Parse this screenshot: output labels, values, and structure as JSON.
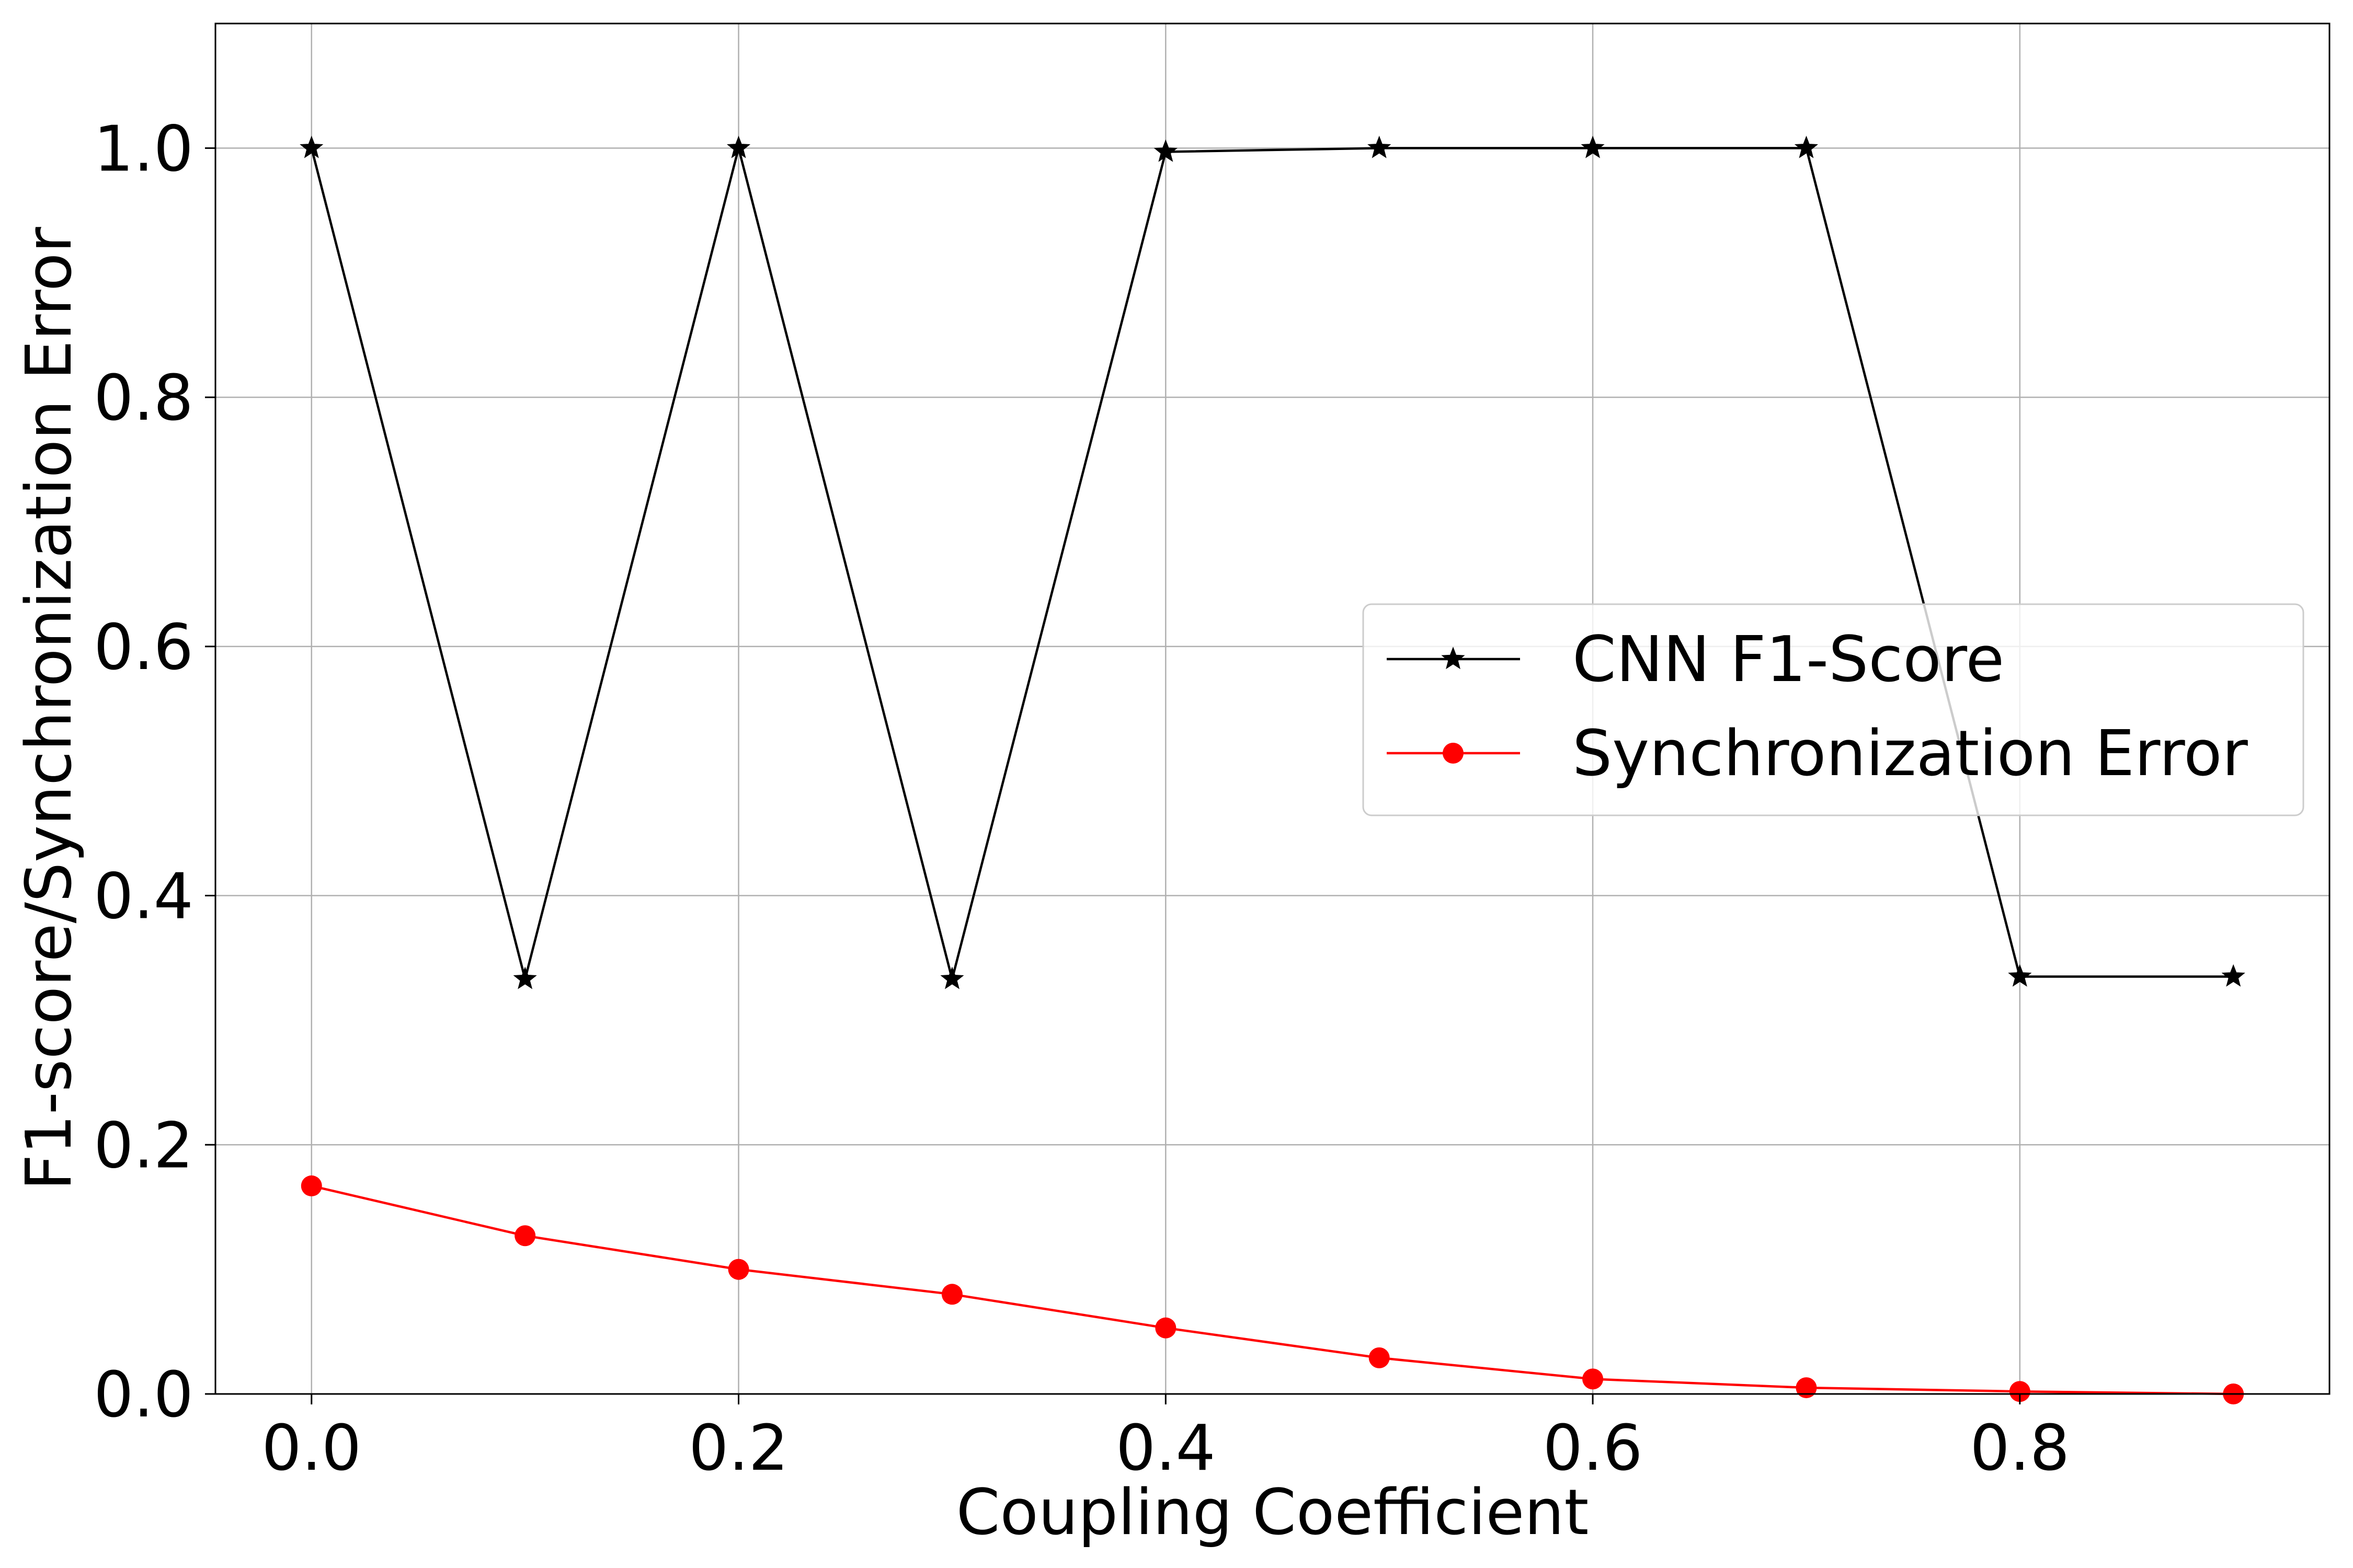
{
  "chart_data": {
    "type": "line",
    "title": "",
    "xlabel": "Coupling Coefficient",
    "ylabel": "F1-score/Synchronization Error",
    "xlim": [
      -0.045,
      0.945
    ],
    "ylim": [
      0.0,
      1.1
    ],
    "x_ticks": [
      0.0,
      0.2,
      0.4,
      0.6,
      0.8
    ],
    "x_tick_labels": [
      "0.0",
      "0.2",
      "0.4",
      "0.6",
      "0.8"
    ],
    "y_ticks": [
      0.0,
      0.2,
      0.4,
      0.6,
      0.8,
      1.0
    ],
    "y_tick_labels": [
      "0.0",
      "0.2",
      "0.4",
      "0.6",
      "0.8",
      "1.0"
    ],
    "grid": true,
    "legend_position": "center-right",
    "x": [
      0.0,
      0.1,
      0.2,
      0.3,
      0.4,
      0.5,
      0.6,
      0.7,
      0.8,
      0.9
    ],
    "series": [
      {
        "name": "CNN F1-Score",
        "color": "#000000",
        "marker": "star",
        "values": [
          1.0,
          0.333,
          1.0,
          0.333,
          0.997,
          1.0,
          1.0,
          1.0,
          0.335,
          0.335
        ]
      },
      {
        "name": "Synchronization Error",
        "color": "#ff0000",
        "marker": "circle",
        "values": [
          0.167,
          0.127,
          0.1,
          0.08,
          0.053,
          0.029,
          0.012,
          0.005,
          0.002,
          0.0
        ]
      }
    ]
  }
}
